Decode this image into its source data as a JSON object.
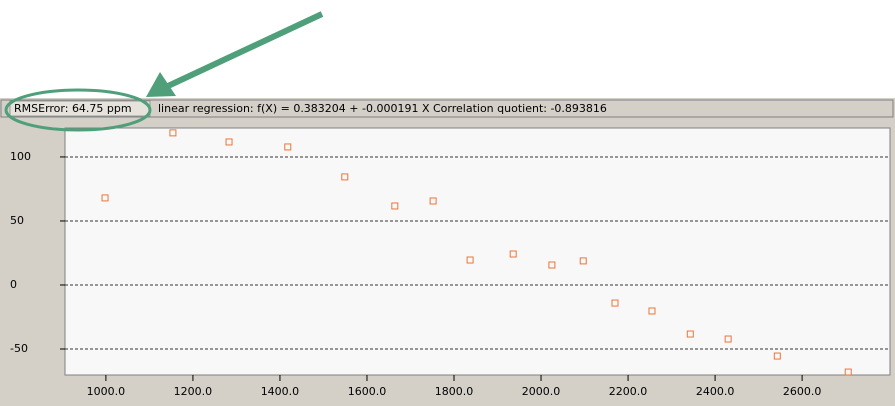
{
  "header": {
    "rms": "RMSError: 64.75 ppm",
    "regression": "linear regression: f(X) = 0.383204 + -0.000191 X  Correlation quotient: -0.893816"
  },
  "chart_data": {
    "type": "scatter",
    "color": "#e8763a",
    "grid": true,
    "x": [
      998,
      1154,
      1283,
      1418,
      1549,
      1664,
      1752,
      1837,
      1936,
      2025,
      2097,
      2170,
      2255,
      2343,
      2430,
      2543,
      2706
    ],
    "values": [
      68,
      118.8,
      111.7,
      107.8,
      84.4,
      61.7,
      65.6,
      19.5,
      24.2,
      15.6,
      18.8,
      -14.1,
      -20.3,
      -38.3,
      -42.2,
      -55.5,
      -68
    ],
    "xlim": [
      906,
      2802
    ],
    "ylim": [
      -70.3,
      122.6
    ],
    "xticks": [
      {
        "value": 1000,
        "label": "1000.0"
      },
      {
        "value": 1200,
        "label": "1200.0"
      },
      {
        "value": 1400,
        "label": "1400.0"
      },
      {
        "value": 1600,
        "label": "1600.0"
      },
      {
        "value": 1800,
        "label": "1800.0"
      },
      {
        "value": 2000,
        "label": "2000.0"
      },
      {
        "value": 2200,
        "label": "2200.0"
      },
      {
        "value": 2400,
        "label": "2400.0"
      },
      {
        "value": 2600,
        "label": "2600.0"
      }
    ],
    "yticks": [
      100,
      50,
      0,
      -50
    ]
  }
}
